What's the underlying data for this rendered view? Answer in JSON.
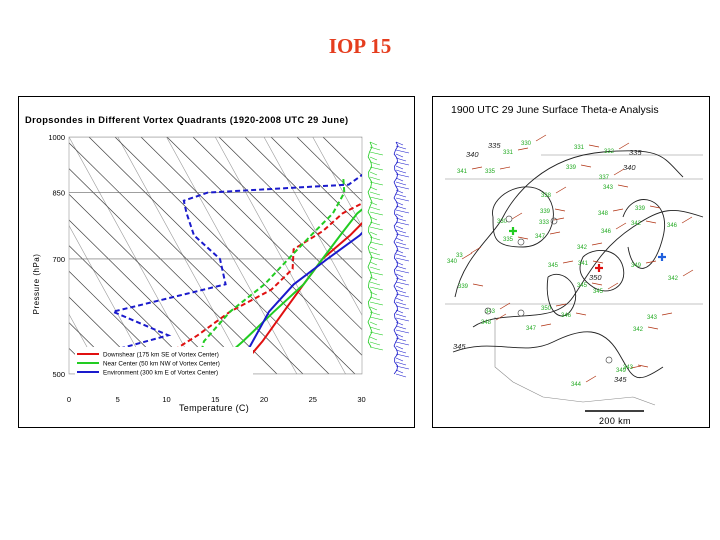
{
  "slide": {
    "title": "IOP 15"
  },
  "skewt": {
    "title": "Dropsondes in Different Vortex Quadrants (1920-2008 UTC 29 June)",
    "ylabel": "Pressure (hPa)",
    "xlabel": "Temperature (C)",
    "y_ticks": [
      "500",
      "700",
      "850",
      "1000"
    ],
    "x_ticks": [
      "0",
      "5",
      "10",
      "15",
      "20",
      "25",
      "30"
    ],
    "legend": [
      {
        "label": "Downshear (175 km SE of Vortex Center)",
        "color": "#e01010"
      },
      {
        "label": "Near Center (50 km NW of  Vortex Center)",
        "color": "#22cc22"
      },
      {
        "label": "Environment (300 km E of Vortex Center)",
        "color": "#1a1acc"
      }
    ]
  },
  "chart_data": {
    "type": "line",
    "title": "Dropsondes in Different Vortex Quadrants (1920-2008 UTC 29 June)",
    "xlabel": "Temperature (C)",
    "ylabel": "Pressure (hPa)",
    "xlim": [
      0,
      30
    ],
    "ylim": [
      1000,
      500
    ],
    "y_scale": "log (skew-T)",
    "series": [
      {
        "name": "Downshear (175 km SE of Vortex Center)",
        "kind": "temperature",
        "color": "#e01010",
        "points": [
          [
            500,
            17
          ],
          [
            550,
            18
          ],
          [
            600,
            18.5
          ],
          [
            650,
            19
          ],
          [
            700,
            19.5
          ],
          [
            750,
            21
          ],
          [
            800,
            22
          ],
          [
            850,
            23
          ],
          [
            900,
            25
          ],
          [
            930,
            25.5
          ]
        ]
      },
      {
        "name": "Downshear (175 km SE of Vortex Center)",
        "kind": "dewpoint",
        "color": "#e01010",
        "points": [
          [
            500,
            3
          ],
          [
            530,
            9
          ],
          [
            560,
            11
          ],
          [
            600,
            13
          ],
          [
            640,
            16
          ],
          [
            680,
            17
          ],
          [
            720,
            16
          ],
          [
            760,
            18
          ],
          [
            800,
            19
          ],
          [
            850,
            22
          ],
          [
            900,
            22
          ],
          [
            930,
            23
          ]
        ]
      },
      {
        "name": "Near Center (50 km NW of  Vortex Center)",
        "kind": "temperature",
        "color": "#22cc22",
        "points": [
          [
            500,
            14
          ],
          [
            550,
            16
          ],
          [
            600,
            17.5
          ],
          [
            650,
            19
          ],
          [
            700,
            19.5
          ],
          [
            750,
            20
          ],
          [
            800,
            20.5
          ],
          [
            850,
            22
          ],
          [
            900,
            24.5
          ],
          [
            930,
            25
          ]
        ]
      },
      {
        "name": "Near Center (50 km NW of  Vortex Center)",
        "kind": "dewpoint",
        "color": "#22cc22",
        "points": [
          [
            500,
            13
          ],
          [
            550,
            12
          ],
          [
            600,
            13
          ],
          [
            650,
            15
          ],
          [
            700,
            16
          ],
          [
            750,
            17
          ],
          [
            800,
            18
          ],
          [
            850,
            18
          ],
          [
            890,
            17
          ]
        ]
      },
      {
        "name": "Environment (300 km E of Vortex Center)",
        "kind": "temperature",
        "color": "#1a1acc",
        "points": [
          [
            500,
            17
          ],
          [
            550,
            17
          ],
          [
            600,
            17
          ],
          [
            650,
            18
          ],
          [
            700,
            20
          ],
          [
            750,
            22
          ],
          [
            800,
            23
          ],
          [
            850,
            24.5
          ],
          [
            880,
            23
          ],
          [
            900,
            25
          ],
          [
            950,
            27
          ]
        ]
      },
      {
        "name": "Environment (300 km E of Vortex Center)",
        "kind": "dewpoint",
        "color": "#1a1acc",
        "points": [
          [
            500,
            7
          ],
          [
            530,
            2
          ],
          [
            560,
            8
          ],
          [
            600,
            1
          ],
          [
            650,
            11
          ],
          [
            700,
            9
          ],
          [
            750,
            5
          ],
          [
            800,
            3
          ],
          [
            830,
            2
          ],
          [
            850,
            4
          ],
          [
            870,
            18
          ],
          [
            900,
            19
          ],
          [
            950,
            18
          ]
        ]
      }
    ]
  },
  "map": {
    "title": "1900 UTC 29 June Surface Theta-e Analysis",
    "scale_label": "200 km",
    "contour_labels": [
      "335",
      "340",
      "340",
      "335",
      "345",
      "350",
      "345"
    ],
    "station_values": [
      "330",
      "331",
      "331",
      "332",
      "341",
      "339",
      "337",
      "335",
      "343",
      "338",
      "348",
      "339",
      "330",
      "333",
      "335",
      "346",
      "347",
      "342",
      "33",
      "345",
      "339",
      "346",
      "342",
      "341",
      "340",
      "349",
      "339",
      "343",
      "350",
      "345",
      "348",
      "347",
      "342",
      "342",
      "343",
      "346",
      "345",
      "349",
      "343",
      "344"
    ],
    "colors": {
      "contour": "#222222",
      "station": "#22aa22",
      "barb": "#b03010",
      "cross_green": "#22cc22",
      "cross_red": "#e01010",
      "cross_blue": "#2060dd"
    }
  }
}
